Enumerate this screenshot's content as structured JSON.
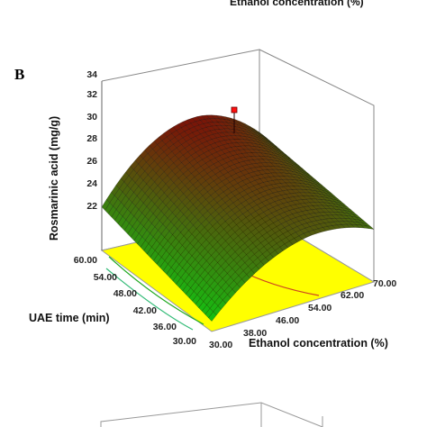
{
  "figure": {
    "top_cut_label": "Ethanol concentration (%)",
    "panel_letter": "B"
  },
  "chart_data": {
    "type": "surface3d",
    "title": "",
    "zlabel": "Rosmarinic acid (mg/g)",
    "xlabel": "Ethanol concentration (%)",
    "ylabel": "UAE time (min)",
    "x_ticks": [
      "30.00",
      "38.00",
      "46.00",
      "54.00",
      "62.00",
      "70.00"
    ],
    "y_ticks": [
      "30.00",
      "36.00",
      "42.00",
      "48.00",
      "54.00",
      "60.00"
    ],
    "z_ticks": [
      "22",
      "24",
      "26",
      "28",
      "30",
      "32",
      "34"
    ],
    "xlim": [
      30,
      70
    ],
    "ylim": [
      30,
      60
    ],
    "zlim": [
      20,
      34
    ],
    "corner_values": {
      "x30_y30": 21.0,
      "x70_y30": 26.0,
      "x30_y60": 25.0,
      "x70_y60": 27.5,
      "peak_x": 54,
      "peak_y": 42,
      "peak_z": 32.5
    },
    "design_point": {
      "x": 54,
      "y": 42,
      "z": 30.8
    },
    "floor_color": "#ffff00",
    "surface_colors": {
      "low": "#12c412",
      "high": "#7a1508"
    }
  }
}
